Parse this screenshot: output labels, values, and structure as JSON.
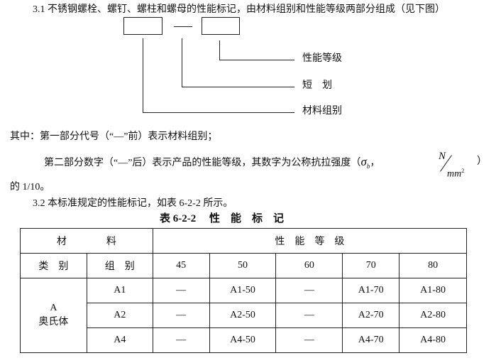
{
  "intro": "3.1 不锈钢螺栓、螺钉、螺柱和螺母的性能标记，由材料组别和性能等级两部分组成（见下图）",
  "diagram": {
    "labels": [
      "性能等级",
      "短　划",
      "材料组别"
    ]
  },
  "para1": "其中：第一部分代号（“—”前）表示材料组别；",
  "para2": "第二部分数字（“—”后）表示产品的性能等级，其数字为公称抗拉强度（",
  "sigma": "σ",
  "sigma_sub": "b",
  "frac_num": "N",
  "frac_den": "mm",
  "frac_exp": "2",
  "para2_end": "）",
  "para3": "的 1/10。",
  "para4": "3.2  本标准规定的性能标记，如表 6-2-2 所示。",
  "table": {
    "caption": "表 6-2-2　 性　能　标　记",
    "h_material": "材　　　　料",
    "h_grade": "性　能　等　级",
    "h_category": "类　别",
    "h_group": "组　别",
    "grades": [
      "45",
      "50",
      "60",
      "70",
      "80"
    ],
    "category": "A",
    "category_name": "奥氏体",
    "rows": [
      {
        "group": "A1",
        "cells": [
          "—",
          "A1-50",
          "—",
          "A1-70",
          "A1-80"
        ]
      },
      {
        "group": "A2",
        "cells": [
          "—",
          "A2-50",
          "—",
          "A2-70",
          "A2-80"
        ]
      },
      {
        "group": "A4",
        "cells": [
          "—",
          "A4-50",
          "—",
          "A4-70",
          "A4-80"
        ]
      }
    ]
  }
}
